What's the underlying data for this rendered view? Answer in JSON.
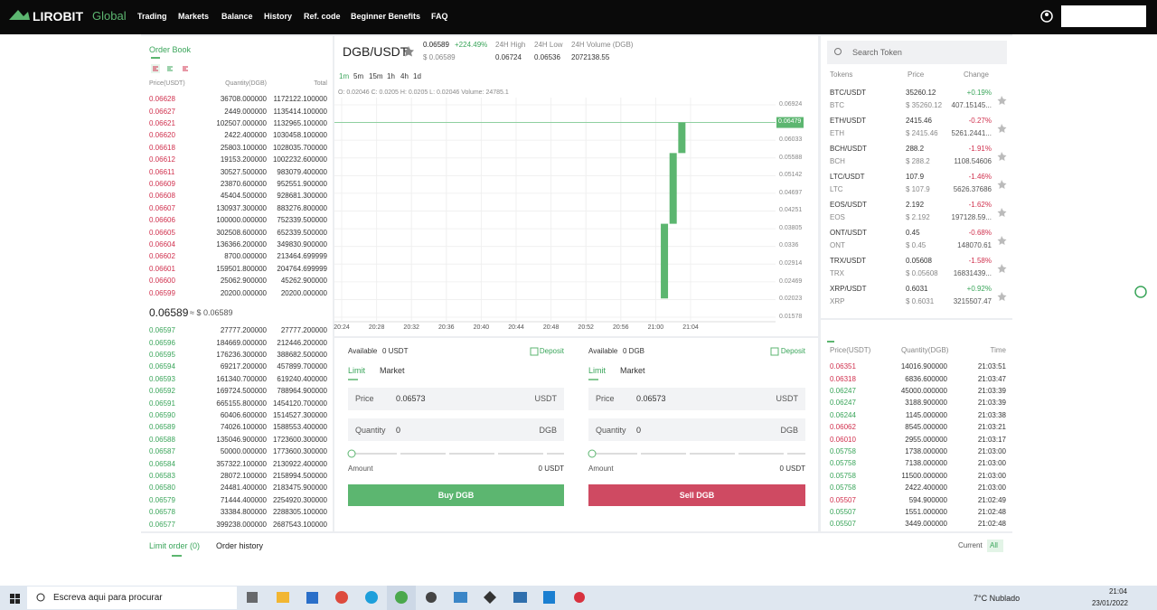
{
  "nav": {
    "logo": "LIROBIT",
    "logo_suffix": "Global",
    "items": [
      "Trading",
      "Markets",
      "Balance",
      "History",
      "Ref. code",
      "Beginner Benefits",
      "FAQ"
    ]
  },
  "order_book": {
    "title": "Order Book",
    "headers": [
      "Price(USDT)",
      "Quantity(DGB)",
      "Total"
    ],
    "asks": [
      [
        "0.06628",
        "36708.000000",
        "1172122.100000"
      ],
      [
        "0.06627",
        "2449.000000",
        "1135414.100000"
      ],
      [
        "0.06621",
        "102507.000000",
        "1132965.100000"
      ],
      [
        "0.06620",
        "2422.400000",
        "1030458.100000"
      ],
      [
        "0.06618",
        "25803.100000",
        "1028035.700000"
      ],
      [
        "0.06612",
        "19153.200000",
        "1002232.600000"
      ],
      [
        "0.06611",
        "30527.500000",
        "983079.400000"
      ],
      [
        "0.06609",
        "23870.600000",
        "952551.900000"
      ],
      [
        "0.06608",
        "45404.500000",
        "928681.300000"
      ],
      [
        "0.06607",
        "130937.300000",
        "883276.800000"
      ],
      [
        "0.06606",
        "100000.000000",
        "752339.500000"
      ],
      [
        "0.06605",
        "302508.600000",
        "652339.500000"
      ],
      [
        "0.06604",
        "136366.200000",
        "349830.900000"
      ],
      [
        "0.06602",
        "8700.000000",
        "213464.699999"
      ],
      [
        "0.06601",
        "159501.800000",
        "204764.699999"
      ],
      [
        "0.06600",
        "25062.900000",
        "45262.900000"
      ],
      [
        "0.06599",
        "20200.000000",
        "20200.000000"
      ]
    ],
    "mid_price": "0.06589",
    "mid_usd": "≈ $ 0.06589",
    "bids": [
      [
        "0.06597",
        "27777.200000",
        "27777.200000"
      ],
      [
        "0.06596",
        "184669.000000",
        "212446.200000"
      ],
      [
        "0.06595",
        "176236.300000",
        "388682.500000"
      ],
      [
        "0.06594",
        "69217.200000",
        "457899.700000"
      ],
      [
        "0.06593",
        "161340.700000",
        "619240.400000"
      ],
      [
        "0.06592",
        "169724.500000",
        "788964.900000"
      ],
      [
        "0.06591",
        "665155.800000",
        "1454120.700000"
      ],
      [
        "0.06590",
        "60406.600000",
        "1514527.300000"
      ],
      [
        "0.06589",
        "74026.100000",
        "1588553.400000"
      ],
      [
        "0.06588",
        "135046.900000",
        "1723600.300000"
      ],
      [
        "0.06587",
        "50000.000000",
        "1773600.300000"
      ],
      [
        "0.06584",
        "357322.100000",
        "2130922.400000"
      ],
      [
        "0.06583",
        "28072.100000",
        "2158994.500000"
      ],
      [
        "0.06580",
        "24481.400000",
        "2183475.900000"
      ],
      [
        "0.06579",
        "71444.400000",
        "2254920.300000"
      ],
      [
        "0.06578",
        "33384.800000",
        "2288305.100000"
      ],
      [
        "0.06577",
        "399238.000000",
        "2687543.100000"
      ]
    ]
  },
  "ticker": {
    "pair": "DGB/USDT",
    "price": "0.06589",
    "change": "+224.49%",
    "usd": "$ 0.06589",
    "high_label": "24H High",
    "high": "0.06724",
    "low_label": "24H Low",
    "low": "0.06536",
    "volume_label": "24H Volume (DGB)",
    "volume": "2072138.55"
  },
  "intervals": [
    "1m",
    "5m",
    "15m",
    "1h",
    "4h",
    "1d"
  ],
  "ohlc": "O: 0.02046  C: 0.0205  H: 0.0205  L: 0.02046  Volume: 24785.1",
  "chart": {
    "type": "candlestick",
    "ylim": [
      0.01578,
      0.06924
    ],
    "yticks": [
      0.06924,
      0.06033,
      0.05588,
      0.05142,
      0.04697,
      0.04251,
      0.03805,
      0.0336,
      0.02914,
      0.02469,
      0.02023,
      0.01578
    ],
    "last_price": 0.06479,
    "xticks": [
      "20:24",
      "20:28",
      "20:32",
      "20:36",
      "20:40",
      "20:44",
      "20:48",
      "20:52",
      "20:56",
      "21:00",
      "21:04"
    ],
    "candles": [
      {
        "time": "21:01",
        "open": 0.0205,
        "close": 0.0393
      },
      {
        "time": "21:02",
        "open": 0.0393,
        "close": 0.0571
      },
      {
        "time": "21:03",
        "open": 0.0571,
        "close": 0.06479
      }
    ],
    "color": "#5cb670"
  },
  "buy": {
    "available_label": "Available",
    "available": "0 USDT",
    "deposit": "Deposit",
    "tabs": [
      "Limit",
      "Market"
    ],
    "price_label": "Price",
    "price": "0.06573",
    "price_unit": "USDT",
    "qty_label": "Quantity",
    "qty": "0",
    "qty_unit": "DGB",
    "amount_label": "Amount",
    "amount": "0 USDT",
    "button": "Buy DGB"
  },
  "sell": {
    "available_label": "Available",
    "available": "0 DGB",
    "deposit": "Deposit",
    "tabs": [
      "Limit",
      "Market"
    ],
    "price_label": "Price",
    "price": "0.06573",
    "price_unit": "USDT",
    "qty_label": "Quantity",
    "qty": "0",
    "qty_unit": "DGB",
    "amount_label": "Amount",
    "amount": "0 USDT",
    "button": "Sell DGB"
  },
  "markets": {
    "search": "Search Token",
    "headers": [
      "Tokens",
      "Price",
      "Change"
    ],
    "rows": [
      {
        "pair": "BTC/USDT",
        "price": "35260.12",
        "change": "+0.19%",
        "base": "BTC",
        "usd": "$ 35260.12",
        "volume": "407.15145..."
      },
      {
        "pair": "ETH/USDT",
        "price": "2415.46",
        "change": "-0.27%",
        "base": "ETH",
        "usd": "$ 2415.46",
        "volume": "5261.2441..."
      },
      {
        "pair": "BCH/USDT",
        "price": "288.2",
        "change": "-1.91%",
        "base": "BCH",
        "usd": "$ 288.2",
        "volume": "1108.54606"
      },
      {
        "pair": "LTC/USDT",
        "price": "107.9",
        "change": "-1.46%",
        "base": "LTC",
        "usd": "$ 107.9",
        "volume": "5626.37686"
      },
      {
        "pair": "EOS/USDT",
        "price": "2.192",
        "change": "-1.62%",
        "base": "EOS",
        "usd": "$ 2.192",
        "volume": "197128.59..."
      },
      {
        "pair": "ONT/USDT",
        "price": "0.45",
        "change": "-0.68%",
        "base": "ONT",
        "usd": "$ 0.45",
        "volume": "148070.61"
      },
      {
        "pair": "TRX/USDT",
        "price": "0.05608",
        "change": "-1.58%",
        "base": "TRX",
        "usd": "$ 0.05608",
        "volume": "16831439..."
      },
      {
        "pair": "XRP/USDT",
        "price": "0.6031",
        "change": "+0.92%",
        "base": "XRP",
        "usd": "$ 0.6031",
        "volume": "3215507.47"
      }
    ]
  },
  "trades": {
    "headers": [
      "Price(USDT)",
      "Quantity(DGB)",
      "Time"
    ],
    "rows": [
      {
        "price": "0.06351",
        "quantity": "14016.900000",
        "time": "21:03:51",
        "color": "#d0314e"
      },
      {
        "price": "0.06318",
        "quantity": "6836.600000",
        "time": "21:03:47",
        "color": "#d0314e"
      },
      {
        "price": "0.06247",
        "quantity": "45000.000000",
        "time": "21:03:39",
        "color": "#3aa55a"
      },
      {
        "price": "0.06247",
        "quantity": "3188.900000",
        "time": "21:03:39",
        "color": "#3aa55a"
      },
      {
        "price": "0.06244",
        "quantity": "1145.000000",
        "time": "21:03:38",
        "color": "#3aa55a"
      },
      {
        "price": "0.06062",
        "quantity": "8545.000000",
        "time": "21:03:21",
        "color": "#d0314e"
      },
      {
        "price": "0.06010",
        "quantity": "2955.000000",
        "time": "21:03:17",
        "color": "#d0314e"
      },
      {
        "price": "0.05758",
        "quantity": "1738.000000",
        "time": "21:03:00",
        "color": "#3aa55a"
      },
      {
        "price": "0.05758",
        "quantity": "7138.000000",
        "time": "21:03:00",
        "color": "#3aa55a"
      },
      {
        "price": "0.05758",
        "quantity": "11500.000000",
        "time": "21:03:00",
        "color": "#3aa55a"
      },
      {
        "price": "0.05758",
        "quantity": "2422.400000",
        "time": "21:03:00",
        "color": "#3aa55a"
      },
      {
        "price": "0.05507",
        "quantity": "594.900000",
        "time": "21:02:49",
        "color": "#d0314e"
      },
      {
        "price": "0.05507",
        "quantity": "1551.000000",
        "time": "21:02:48",
        "color": "#3aa55a"
      },
      {
        "price": "0.05507",
        "quantity": "3449.000000",
        "time": "21:02:48",
        "color": "#3aa55a"
      }
    ]
  },
  "orders": {
    "tabs": [
      "Limit order (0)",
      "Order history"
    ],
    "filters": [
      "Current",
      "All"
    ]
  },
  "taskbar": {
    "search": "Escreva aqui para procurar",
    "weather": "7°C  Nublado",
    "time": "21:04",
    "date": "23/01/2022"
  }
}
